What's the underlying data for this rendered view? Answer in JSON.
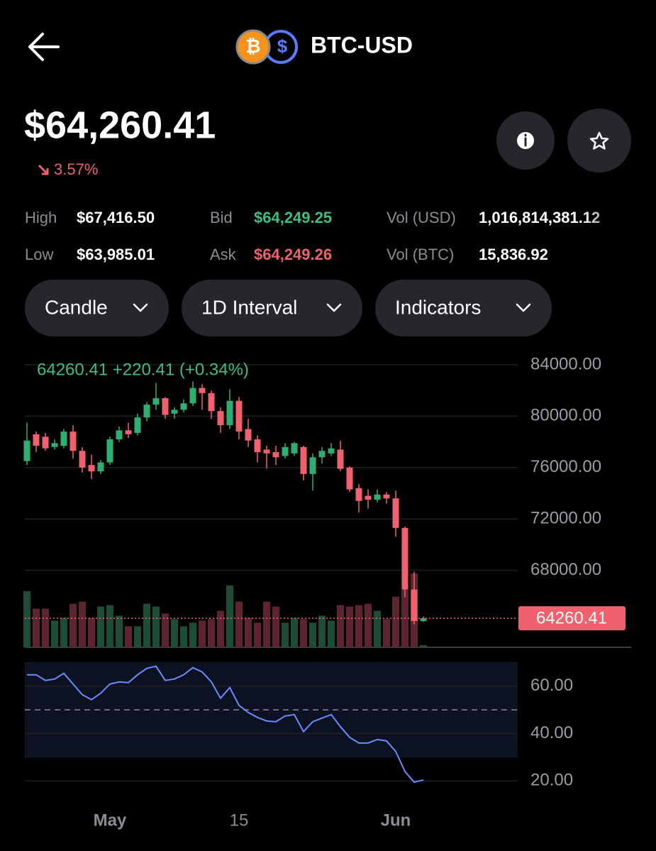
{
  "header": {
    "base_icon": "₿",
    "quote_icon": "$",
    "pair": "BTC-USD"
  },
  "price": {
    "last": "$64,260.41",
    "change": "3.57%"
  },
  "stats": [
    {
      "label": "High",
      "value": "$67,416.50",
      "color": "#ffffff"
    },
    {
      "label": "Bid",
      "value": "$64,249.25",
      "color": "#3fbf7f"
    },
    {
      "label": "Vol (USD)",
      "value": "1,016,814,381.12",
      "color": "#ffffff"
    },
    {
      "label": "Low",
      "value": "$63,985.01",
      "color": "#ffffff"
    },
    {
      "label": "Ask",
      "value": "$64,249.26",
      "color": "#f0616d"
    },
    {
      "label": "Vol (BTC)",
      "value": "15,836.92",
      "color": "#ffffff"
    }
  ],
  "controls": [
    "Candle",
    "1D Interval",
    "Indicators"
  ],
  "chart_data": [
    {
      "type": "candlestick",
      "legend_text": "64260.41 +220.41 (+0.34%)",
      "categories": [
        null,
        null,
        null,
        null,
        null,
        null,
        null,
        null,
        null,
        "May",
        null,
        null,
        null,
        null,
        null,
        null,
        null,
        null,
        null,
        null,
        null,
        null,
        null,
        "15",
        null,
        null,
        null,
        null,
        null,
        null,
        null,
        null,
        null,
        null,
        null,
        null,
        null,
        null,
        null,
        null,
        "Jun",
        null,
        null,
        null
      ],
      "open": [
        76500,
        78600,
        78400,
        77600,
        77700,
        78800,
        77300,
        76200,
        75700,
        76400,
        78200,
        78900,
        78700,
        79900,
        80900,
        81400,
        80200,
        80500,
        81000,
        82200,
        81800,
        80400,
        79300,
        81200,
        79000,
        78200,
        77400,
        77200,
        76900,
        77100,
        77600,
        75500,
        76800,
        77100,
        77400,
        76000,
        74400,
        73800,
        73500,
        73900,
        73600,
        71300,
        66500,
        64040
      ],
      "high": [
        79500,
        78800,
        78700,
        78200,
        79000,
        79300,
        77600,
        77000,
        76600,
        78400,
        79200,
        79500,
        80200,
        81100,
        82600,
        81500,
        80700,
        81300,
        82700,
        82500,
        82000,
        80700,
        82100,
        81500,
        79800,
        78500,
        77700,
        77700,
        77900,
        78000,
        77700,
        77100,
        77600,
        77900,
        78100,
        76100,
        74700,
        74300,
        74300,
        74100,
        74200,
        71400,
        67900,
        64400
      ],
      "low": [
        76200,
        77200,
        77300,
        77400,
        77500,
        76700,
        75600,
        75100,
        75500,
        76200,
        78000,
        78300,
        78500,
        79600,
        80500,
        79800,
        79800,
        80300,
        80800,
        80500,
        79800,
        78700,
        79000,
        78200,
        77600,
        76400,
        75900,
        76200,
        76700,
        76900,
        75000,
        74200,
        76300,
        76900,
        75700,
        74100,
        72500,
        72800,
        73300,
        73200,
        70600,
        65900,
        63800,
        63985
      ],
      "close": [
        78100,
        77700,
        77500,
        77900,
        78800,
        77300,
        76000,
        75700,
        76400,
        78200,
        78900,
        78600,
        79900,
        80900,
        81400,
        80100,
        80500,
        81000,
        82200,
        81800,
        80400,
        79300,
        81200,
        78800,
        78100,
        77200,
        77100,
        76800,
        77600,
        77900,
        75500,
        76800,
        77300,
        77500,
        75900,
        74300,
        73400,
        73500,
        73900,
        73600,
        71300,
        66500,
        64040,
        64260.41
      ],
      "volume": [
        80,
        55,
        55,
        38,
        42,
        62,
        65,
        42,
        58,
        60,
        45,
        30,
        30,
        62,
        58,
        48,
        40,
        30,
        35,
        38,
        40,
        52,
        88,
        65,
        42,
        35,
        65,
        58,
        35,
        42,
        40,
        35,
        45,
        38,
        60,
        58,
        60,
        62,
        52,
        40,
        72,
        82,
        105,
        3
      ],
      "up_color": "#2fae72",
      "down_color": "#f0616d",
      "volume_up_color": "#1d4d35",
      "volume_down_color": "#5e2530",
      "ylim": [
        62000,
        84500
      ],
      "yticks": [
        {
          "value": 68000,
          "label": "68000.00"
        },
        {
          "value": 72000,
          "label": "72000.00"
        },
        {
          "value": 76000,
          "label": "76000.00"
        },
        {
          "value": 80000,
          "label": "80000.00"
        },
        {
          "value": 84000,
          "label": "84000.00"
        }
      ],
      "last_price": 64260.41,
      "grid": true
    },
    {
      "type": "line",
      "color": "#6b8cff",
      "values": [
        64.8,
        64.8,
        62.4,
        63,
        65.4,
        60.9,
        56.4,
        54.3,
        57,
        60.9,
        61.8,
        61.5,
        64.8,
        67.5,
        68.4,
        62.4,
        63,
        64.8,
        67.8,
        66,
        61.8,
        54.9,
        59.4,
        51.9,
        48.9,
        46.8,
        45.3,
        45,
        47.4,
        48,
        40.8,
        45,
        46.5,
        48,
        42.9,
        38.4,
        36,
        36,
        37.5,
        36.9,
        32.4,
        24,
        19.5,
        20.4
      ],
      "ylim": [
        12,
        71
      ],
      "yticks": [
        {
          "value": 20,
          "label": "20.00"
        },
        {
          "value": 40,
          "label": "40.00"
        },
        {
          "value": 60,
          "label": "60.00"
        }
      ],
      "band": [
        30,
        70
      ],
      "midline": 50,
      "grid": true
    }
  ]
}
